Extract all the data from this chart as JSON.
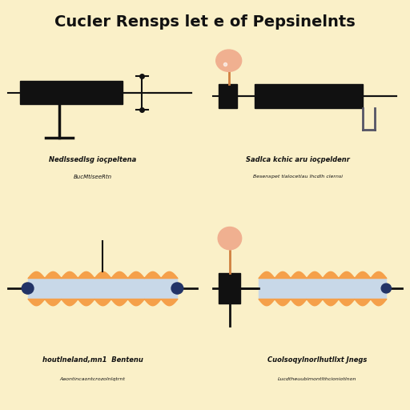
{
  "title": "CucIer Rensps let e of Pepsinelnts",
  "bg_color": "#faf0c8",
  "top_panel_bg": "#ffffff",
  "bottom_panel_bg": "#faf0c8",
  "panel_border": "#d4c070",
  "panels": [
    {
      "label_line1": "Nedlssedlsg ioçpeltena",
      "label_line2": "BucMtlseeRtn",
      "type": "rheostat_down",
      "bg": "#ffffff"
    },
    {
      "label_line1": "Sadlca kchic aru ioçpeldenr",
      "label_line2": "Besenxpet tlalocetlau lhcdlh clernsi",
      "type": "rheostat_up_bulb",
      "bg": "#ffffff"
    },
    {
      "label_line1": "houtlneland,mn1  Bentenu",
      "label_line2": "Aaontincaontcrozolnlqtrnt",
      "type": "wire_resistor",
      "bg": "#faf0c8"
    },
    {
      "label_line1": "Cuolsoqylnorlhutllxt Jnegs",
      "label_line2": "Lucdtheuubimontlthcioniotlnon",
      "type": "bulb_resistor",
      "bg": "#faf0c8"
    }
  ],
  "orange": "#f5a04a",
  "gray_light": "#c8d8e8",
  "black": "#111111",
  "dark_gray": "#555566",
  "bulb_peach": "#f0b090",
  "bulb_stem": "#d08040",
  "blue_cap": "#334488"
}
